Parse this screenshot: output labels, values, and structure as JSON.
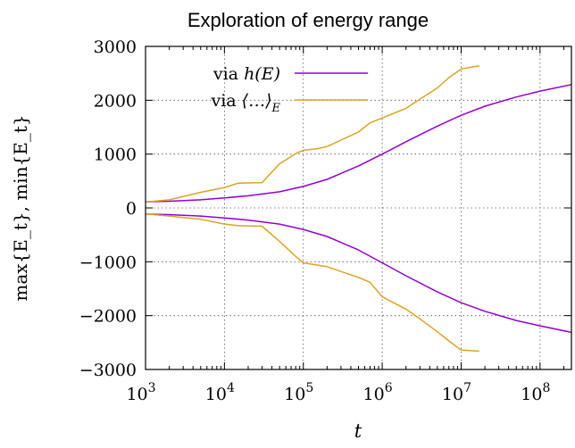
{
  "chart_data": {
    "type": "line",
    "title": "Exploration of energy range",
    "xlabel": "t",
    "ylabel": "max{E_t}, min{E_t}",
    "x_scale": "log",
    "xlim": [
      1000,
      250000000
    ],
    "ylim": [
      -3000,
      3000
    ],
    "grid": true,
    "legend_position": "top-left",
    "x_ticks": [
      1000,
      10000,
      100000,
      1000000,
      10000000,
      100000000
    ],
    "x_tick_labels": [
      {
        "base": "10",
        "exp": "3"
      },
      {
        "base": "10",
        "exp": "4"
      },
      {
        "base": "10",
        "exp": "5"
      },
      {
        "base": "10",
        "exp": "6"
      },
      {
        "base": "10",
        "exp": "7"
      },
      {
        "base": "10",
        "exp": "8"
      }
    ],
    "y_ticks": [
      -3000,
      -2000,
      -1000,
      0,
      1000,
      2000,
      3000
    ],
    "y_tick_labels": [
      "−3000",
      "−2000",
      "−1000",
      "0",
      "1000",
      "2000",
      "3000"
    ],
    "series": [
      {
        "name": "via h(E)",
        "legend_text": "via ",
        "legend_math": "h(E)",
        "color": "#9400d3",
        "max": {
          "x": [
            1000,
            2000,
            5000,
            10000,
            20000,
            50000,
            100000,
            200000,
            500000,
            1000000,
            2000000,
            5000000,
            10000000,
            20000000,
            50000000,
            100000000,
            250000000
          ],
          "y": [
            115,
            125,
            150,
            185,
            225,
            300,
            400,
            530,
            780,
            1000,
            1230,
            1520,
            1720,
            1890,
            2060,
            2170,
            2290
          ]
        },
        "min": {
          "x": [
            1000,
            2000,
            5000,
            10000,
            20000,
            50000,
            100000,
            200000,
            500000,
            1000000,
            2000000,
            5000000,
            10000000,
            20000000,
            50000000,
            100000000,
            250000000
          ],
          "y": [
            -115,
            -125,
            -150,
            -185,
            -225,
            -300,
            -400,
            -530,
            -780,
            -1020,
            -1260,
            -1560,
            -1760,
            -1920,
            -2090,
            -2190,
            -2310
          ]
        }
      },
      {
        "name": "via ⟨...⟩_E",
        "legend_text": "via ",
        "legend_math": "⟨…⟩",
        "legend_sub": "E",
        "color": "#daa520",
        "max": {
          "x": [
            1000,
            2000,
            5000,
            10000,
            15000,
            30000,
            50000,
            80000,
            100000,
            150000,
            200000,
            300000,
            500000,
            700000,
            1000000,
            2000000,
            3000000,
            5000000,
            7000000,
            10000000,
            17000000
          ],
          "y": [
            110,
            150,
            290,
            380,
            460,
            470,
            820,
            1010,
            1070,
            1100,
            1140,
            1260,
            1410,
            1580,
            1670,
            1850,
            2020,
            2230,
            2420,
            2580,
            2640
          ]
        },
        "min": {
          "x": [
            1000,
            2000,
            5000,
            10000,
            15000,
            30000,
            50000,
            80000,
            100000,
            150000,
            200000,
            300000,
            500000,
            700000,
            1000000,
            2000000,
            3000000,
            5000000,
            7000000,
            10000000,
            17000000
          ],
          "y": [
            -110,
            -150,
            -210,
            -300,
            -330,
            -340,
            -620,
            -900,
            -1020,
            -1060,
            -1090,
            -1180,
            -1290,
            -1380,
            -1650,
            -1880,
            -2060,
            -2300,
            -2470,
            -2640,
            -2660
          ]
        }
      }
    ]
  }
}
